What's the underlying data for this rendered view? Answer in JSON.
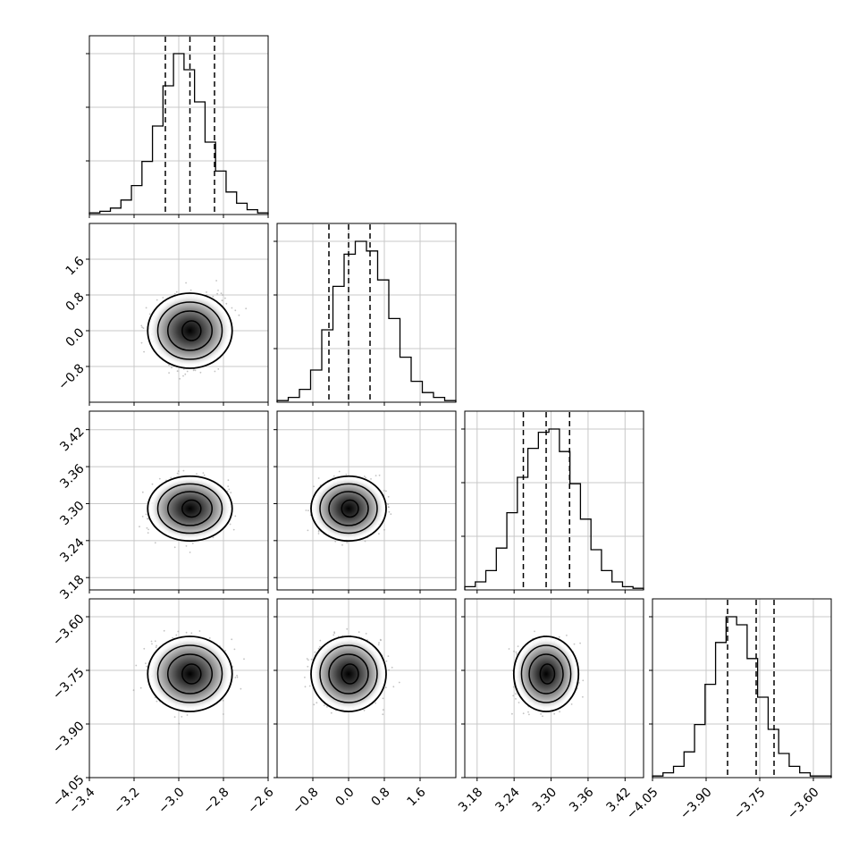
{
  "chart_data": {
    "type": "corner",
    "n_params": 4,
    "grid": true,
    "quantile_lines": "dashed",
    "contour_levels": 4,
    "parameters": [
      {
        "center": -2.95,
        "sigma": 0.09,
        "range": [
          -3.4,
          -2.6
        ],
        "ticks": [
          -3.4,
          -3.2,
          -3.0,
          -2.8,
          -2.6
        ],
        "tick_labels": [
          "−3.4",
          "−3.2",
          "−3.0",
          "−2.8",
          "−2.6"
        ],
        "quantiles": [
          -3.06,
          -2.95,
          -2.84
        ]
      },
      {
        "center": 0.0,
        "sigma": 0.4,
        "range": [
          -1.6,
          2.4
        ],
        "ticks": [
          -0.8,
          0.0,
          0.8,
          1.6
        ],
        "tick_labels": [
          "−0.8",
          "0.0",
          "0.8",
          "1.6"
        ],
        "quantiles": [
          -0.44,
          0.0,
          0.48
        ]
      },
      {
        "center": 3.292,
        "sigma": 0.025,
        "range": [
          3.16,
          3.45
        ],
        "ticks": [
          3.18,
          3.24,
          3.3,
          3.36,
          3.42
        ],
        "tick_labels": [
          "3.18",
          "3.24",
          "3.30",
          "3.36",
          "3.42"
        ],
        "quantiles": [
          3.255,
          3.292,
          3.33
        ]
      },
      {
        "center": -3.76,
        "sigma": 0.05,
        "range": [
          -4.05,
          -3.55
        ],
        "ticks": [
          -4.05,
          -3.9,
          -3.75,
          -3.6
        ],
        "tick_labels": [
          "−4.05",
          "−3.90",
          "−3.75",
          "−3.60"
        ],
        "quantiles": [
          -3.84,
          -3.76,
          -3.71
        ]
      }
    ],
    "histograms": [
      [
        1,
        2,
        4,
        9,
        18,
        33,
        55,
        80,
        100,
        90,
        70,
        45,
        27,
        14,
        7,
        3,
        1
      ],
      [
        1,
        3,
        8,
        20,
        45,
        72,
        92,
        100,
        94,
        76,
        52,
        28,
        13,
        6,
        3,
        1
      ],
      [
        2,
        5,
        12,
        26,
        48,
        70,
        88,
        98,
        100,
        86,
        66,
        44,
        25,
        12,
        5,
        2,
        1
      ],
      [
        1,
        3,
        7,
        16,
        33,
        58,
        84,
        100,
        95,
        74,
        50,
        30,
        15,
        7,
        3,
        1,
        1
      ]
    ]
  }
}
